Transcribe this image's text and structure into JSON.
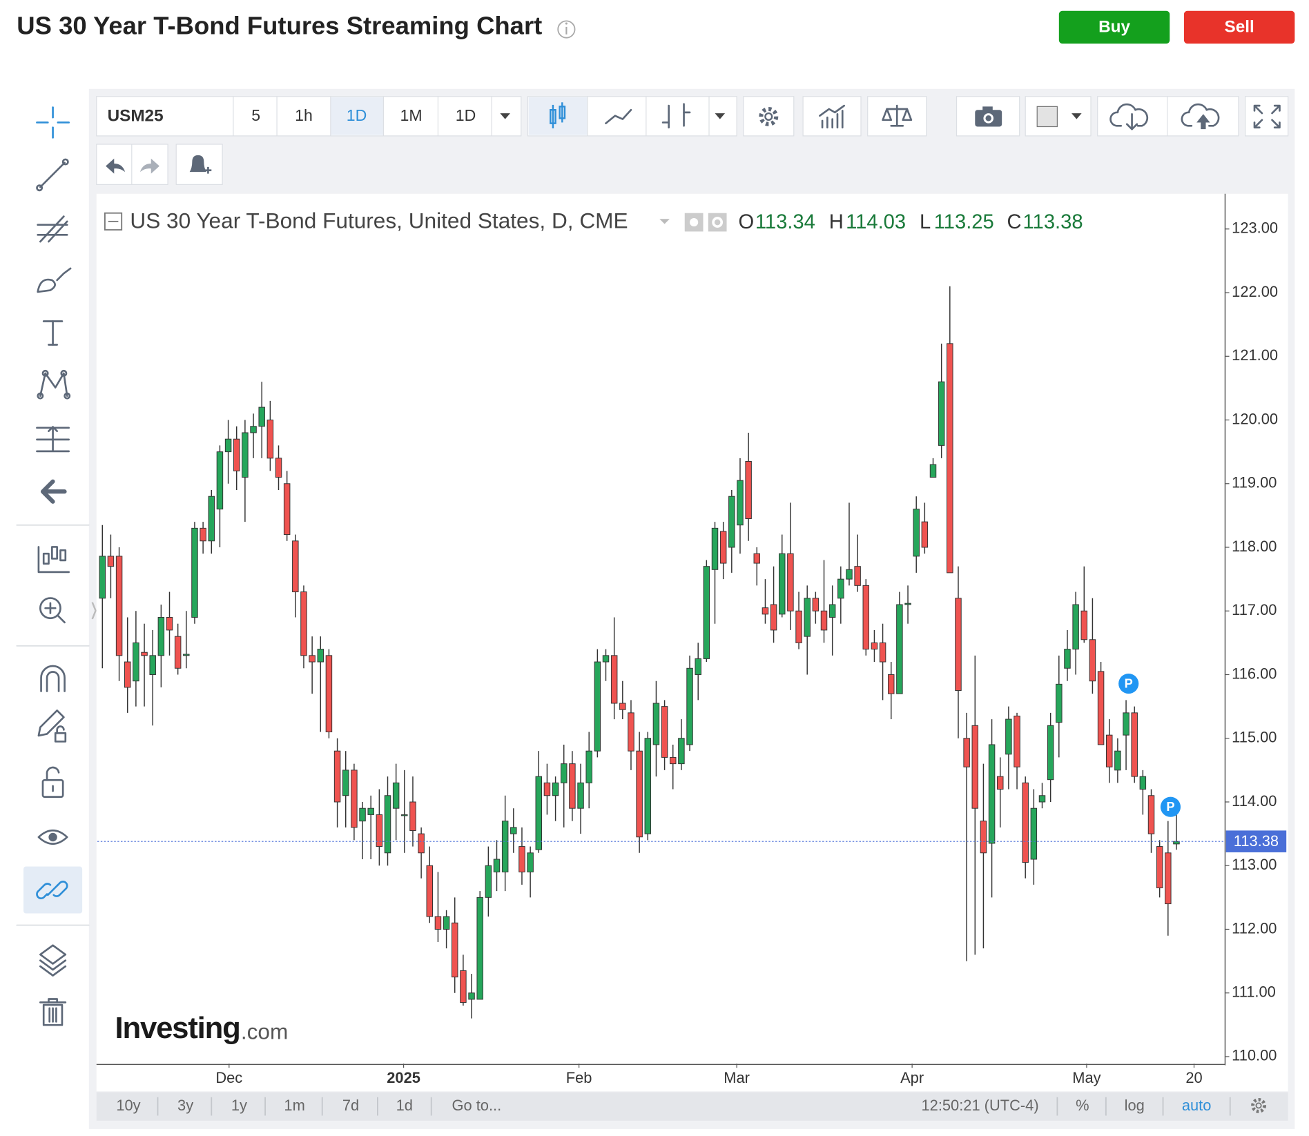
{
  "header": {
    "title": "US 30 Year T-Bond Futures Streaming Chart",
    "buy": "Buy",
    "sell": "Sell"
  },
  "toolbar": {
    "symbol": "USM25",
    "intervals": [
      "5",
      "1h",
      "1D",
      "1M",
      "1D"
    ]
  },
  "chart_data": {
    "type": "candlestick",
    "title": "US 30 Year T-Bond Futures, United States, D, CME",
    "ohlc_letters": [
      "O",
      "H",
      "L",
      "C"
    ],
    "up_color": "#26a65b",
    "down_color": "#ef5350",
    "edge_color": "#333333",
    "last_price_color": "#4a6fd8",
    "ohlc": [
      [
        117.2,
        118.35,
        116.1,
        117.86
      ],
      [
        117.86,
        118.2,
        117.2,
        117.7
      ],
      [
        117.86,
        118.0,
        115.9,
        116.3
      ],
      [
        116.2,
        116.9,
        115.4,
        115.8
      ],
      [
        115.9,
        117.0,
        115.5,
        116.5
      ],
      [
        116.35,
        116.8,
        115.5,
        116.3
      ],
      [
        116.0,
        116.7,
        115.2,
        116.3
      ],
      [
        116.3,
        117.1,
        115.8,
        116.9
      ],
      [
        116.9,
        117.3,
        116.3,
        116.7
      ],
      [
        116.6,
        116.8,
        116.0,
        116.1
      ],
      [
        116.3,
        117.0,
        116.1,
        116.32
      ],
      [
        116.9,
        118.4,
        116.8,
        118.3
      ],
      [
        118.3,
        118.4,
        117.9,
        118.1
      ],
      [
        118.1,
        118.9,
        117.9,
        118.8
      ],
      [
        118.6,
        119.6,
        118.0,
        119.5
      ],
      [
        119.5,
        120.0,
        119.0,
        119.7
      ],
      [
        119.7,
        119.9,
        118.9,
        119.2
      ],
      [
        119.1,
        120.0,
        118.4,
        119.8
      ],
      [
        119.8,
        120.1,
        119.4,
        119.9
      ],
      [
        119.9,
        120.6,
        119.4,
        120.2
      ],
      [
        120.0,
        120.3,
        119.2,
        119.4
      ],
      [
        119.4,
        119.6,
        118.9,
        119.1
      ],
      [
        119.0,
        119.2,
        118.1,
        118.2
      ],
      [
        118.1,
        118.2,
        116.9,
        117.3
      ],
      [
        117.3,
        117.4,
        116.1,
        116.3
      ],
      [
        116.3,
        116.6,
        115.7,
        116.2
      ],
      [
        116.2,
        116.6,
        115.1,
        116.4
      ],
      [
        116.3,
        116.4,
        115.0,
        115.1
      ],
      [
        114.8,
        115.0,
        113.6,
        114.0
      ],
      [
        114.1,
        114.8,
        113.6,
        114.5
      ],
      [
        114.5,
        114.6,
        113.4,
        113.6
      ],
      [
        113.7,
        114.0,
        113.1,
        113.9
      ],
      [
        113.8,
        114.1,
        113.1,
        113.9
      ],
      [
        113.8,
        114.2,
        113.0,
        113.3
      ],
      [
        113.2,
        114.4,
        113.0,
        114.1
      ],
      [
        113.9,
        114.6,
        113.4,
        114.3
      ],
      [
        113.8,
        114.5,
        113.2,
        113.8
      ],
      [
        114.0,
        114.4,
        113.3,
        113.55
      ],
      [
        113.5,
        113.6,
        112.8,
        113.2
      ],
      [
        113.0,
        113.3,
        112.1,
        112.2
      ],
      [
        112.2,
        112.9,
        111.8,
        112.0
      ],
      [
        112.0,
        112.3,
        111.7,
        112.2
      ],
      [
        112.1,
        112.5,
        111.0,
        111.25
      ],
      [
        111.35,
        111.6,
        110.8,
        110.85
      ],
      [
        110.9,
        111.3,
        110.6,
        111.0
      ],
      [
        110.9,
        112.6,
        110.9,
        112.5
      ],
      [
        112.5,
        113.3,
        112.2,
        113.0
      ],
      [
        112.9,
        113.4,
        112.6,
        113.1
      ],
      [
        112.9,
        114.1,
        112.6,
        113.7
      ],
      [
        113.5,
        113.9,
        113.2,
        113.6
      ],
      [
        113.3,
        113.6,
        112.7,
        112.9
      ],
      [
        112.9,
        113.3,
        112.5,
        113.2
      ],
      [
        113.25,
        114.8,
        113.2,
        114.4
      ],
      [
        114.3,
        114.6,
        113.8,
        114.1
      ],
      [
        114.1,
        114.4,
        113.7,
        114.3
      ],
      [
        114.3,
        114.9,
        113.6,
        114.6
      ],
      [
        114.6,
        114.8,
        113.7,
        113.9
      ],
      [
        113.9,
        114.6,
        113.5,
        114.3
      ],
      [
        114.3,
        115.1,
        113.9,
        114.8
      ],
      [
        114.8,
        116.4,
        114.7,
        116.2
      ],
      [
        116.2,
        116.4,
        115.9,
        116.3
      ],
      [
        116.3,
        116.9,
        115.3,
        115.55
      ],
      [
        115.55,
        115.9,
        115.3,
        115.45
      ],
      [
        115.4,
        115.6,
        114.5,
        114.8
      ],
      [
        114.8,
        115.1,
        113.2,
        113.45
      ],
      [
        113.5,
        115.1,
        113.4,
        115.0
      ],
      [
        114.9,
        115.9,
        114.4,
        115.55
      ],
      [
        115.5,
        115.6,
        114.5,
        114.7
      ],
      [
        114.7,
        114.9,
        114.2,
        114.6
      ],
      [
        114.6,
        115.3,
        114.5,
        115.0
      ],
      [
        114.9,
        116.3,
        114.8,
        116.1
      ],
      [
        116.0,
        116.5,
        115.6,
        116.25
      ],
      [
        116.25,
        117.8,
        116.2,
        117.7
      ],
      [
        117.65,
        118.4,
        116.8,
        118.3
      ],
      [
        118.25,
        118.4,
        117.5,
        117.75
      ],
      [
        118.0,
        118.9,
        117.6,
        118.8
      ],
      [
        118.35,
        119.4,
        117.9,
        119.05
      ],
      [
        119.35,
        119.8,
        118.1,
        118.45
      ],
      [
        117.9,
        118.0,
        117.4,
        117.75
      ],
      [
        117.05,
        117.5,
        116.8,
        116.95
      ],
      [
        117.1,
        117.7,
        116.5,
        116.7
      ],
      [
        116.95,
        118.2,
        116.9,
        117.9
      ],
      [
        117.9,
        118.7,
        116.7,
        117.0
      ],
      [
        117.0,
        117.3,
        116.4,
        116.5
      ],
      [
        116.6,
        117.4,
        116.0,
        117.2
      ],
      [
        117.2,
        117.3,
        116.8,
        117.0
      ],
      [
        117.0,
        117.8,
        116.5,
        116.7
      ],
      [
        116.9,
        117.4,
        116.3,
        117.1
      ],
      [
        117.2,
        117.7,
        116.8,
        117.5
      ],
      [
        117.5,
        118.7,
        117.4,
        117.65
      ],
      [
        117.7,
        118.2,
        117.3,
        117.4
      ],
      [
        117.4,
        117.5,
        116.3,
        116.4
      ],
      [
        116.5,
        116.7,
        116.2,
        116.4
      ],
      [
        116.5,
        116.8,
        115.6,
        116.2
      ],
      [
        116.0,
        116.2,
        115.3,
        115.7
      ],
      [
        115.7,
        117.3,
        115.7,
        117.1
      ],
      [
        117.1,
        117.4,
        116.8,
        117.12
      ],
      [
        117.86,
        118.8,
        117.6,
        118.6
      ],
      [
        118.4,
        118.7,
        117.9,
        118.0
      ],
      [
        119.1,
        119.4,
        119.1,
        119.3
      ],
      [
        119.6,
        121.2,
        119.4,
        120.6
      ],
      [
        121.2,
        122.1,
        117.6,
        117.6
      ],
      [
        117.2,
        117.7,
        115.0,
        115.75
      ],
      [
        115.0,
        115.4,
        111.5,
        114.55
      ],
      [
        115.2,
        116.3,
        111.6,
        113.9
      ],
      [
        113.7,
        114.6,
        111.7,
        113.2
      ],
      [
        113.35,
        115.3,
        112.5,
        114.9
      ],
      [
        114.4,
        114.7,
        113.6,
        114.2
      ],
      [
        114.75,
        115.5,
        114.2,
        115.3
      ],
      [
        115.35,
        115.4,
        114.2,
        114.55
      ],
      [
        114.3,
        114.4,
        112.8,
        113.05
      ],
      [
        113.1,
        114.2,
        112.7,
        113.9
      ],
      [
        114.0,
        114.3,
        113.9,
        114.1
      ],
      [
        114.35,
        115.4,
        114.0,
        115.2
      ],
      [
        115.25,
        116.3,
        114.7,
        115.85
      ],
      [
        116.1,
        116.7,
        115.9,
        116.4
      ],
      [
        116.4,
        117.3,
        116.0,
        117.1
      ],
      [
        117.0,
        117.7,
        116.5,
        116.55
      ],
      [
        116.55,
        117.2,
        115.7,
        115.9
      ],
      [
        116.05,
        116.2,
        114.9,
        114.9
      ],
      [
        115.05,
        115.3,
        114.3,
        114.55
      ],
      [
        114.5,
        115.0,
        114.3,
        114.8
      ],
      [
        115.05,
        115.6,
        114.5,
        115.4
      ],
      [
        115.4,
        115.5,
        114.3,
        114.4
      ],
      [
        114.2,
        114.5,
        113.8,
        114.4
      ],
      [
        114.1,
        114.2,
        113.2,
        113.5
      ],
      [
        113.3,
        113.4,
        112.5,
        112.65
      ],
      [
        113.2,
        113.7,
        111.9,
        112.4
      ],
      [
        113.34,
        114.03,
        113.25,
        113.38
      ]
    ],
    "xlim": [
      -0.6,
      133.8
    ],
    "xticks": [
      {
        "value": 15.1,
        "label": "Dec"
      },
      {
        "value": 35.9,
        "label": "2025"
      },
      {
        "value": 56.8,
        "label": "Feb"
      },
      {
        "value": 75.6,
        "label": "Mar"
      },
      {
        "value": 96.5,
        "label": "Apr"
      },
      {
        "value": 117.3,
        "label": "May"
      },
      {
        "value": 130.1,
        "label": "20"
      }
    ],
    "ylim": [
      109.89,
      123.54
    ],
    "yticks": [
      {
        "value": 110,
        "label": "110.00"
      },
      {
        "value": 111,
        "label": "111.00"
      },
      {
        "value": 112,
        "label": "112.00"
      },
      {
        "value": 113,
        "label": "113.00"
      },
      {
        "value": 114,
        "label": "114.00"
      },
      {
        "value": 115,
        "label": "115.00"
      },
      {
        "value": 116,
        "label": "116.00"
      },
      {
        "value": 117,
        "label": "117.00"
      },
      {
        "value": 118,
        "label": "118.00"
      },
      {
        "value": 119,
        "label": "119.00"
      },
      {
        "value": 120,
        "label": "120.00"
      },
      {
        "value": 121,
        "label": "121.00"
      },
      {
        "value": 122,
        "label": "122.00"
      },
      {
        "value": 123,
        "label": "123.00"
      }
    ],
    "grid": false,
    "markers": [
      "P",
      "P"
    ],
    "watermark": [
      "Investing",
      ".com"
    ]
  },
  "footer": {
    "ranges": [
      "10y",
      "3y",
      "1y",
      "1m",
      "7d",
      "1d",
      "Go to..."
    ],
    "time": "12:50:21 (UTC-4)",
    "options": [
      "%",
      "log",
      "auto"
    ]
  }
}
